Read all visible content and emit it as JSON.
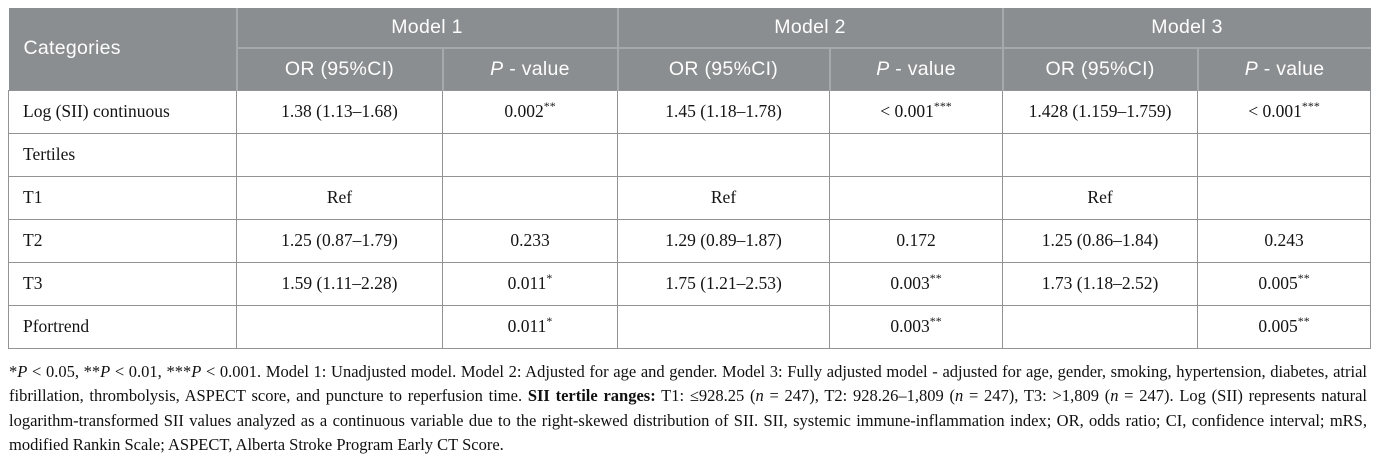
{
  "table": {
    "header": {
      "categories": "Categories",
      "models": [
        "Model 1",
        "Model 2",
        "Model 3"
      ],
      "or_label": "OR (95%CI)",
      "p_label_italic": "P",
      "p_label_rest": " - value"
    },
    "rows": [
      {
        "label": "Log (SII) continuous",
        "cells": [
          {
            "text": "1.38 (1.13–1.68)"
          },
          {
            "text": "0.002",
            "sup": "**"
          },
          {
            "text": "1.45 (1.18–1.78)"
          },
          {
            "text": "< 0.001",
            "sup": "***"
          },
          {
            "text": "1.428 (1.159–1.759)"
          },
          {
            "text": "< 0.001",
            "sup": "***"
          }
        ]
      },
      {
        "label": "Tertiles",
        "cells": [
          {
            "text": ""
          },
          {
            "text": ""
          },
          {
            "text": ""
          },
          {
            "text": ""
          },
          {
            "text": ""
          },
          {
            "text": ""
          }
        ]
      },
      {
        "label": "T1",
        "cells": [
          {
            "text": "Ref"
          },
          {
            "text": ""
          },
          {
            "text": "Ref"
          },
          {
            "text": ""
          },
          {
            "text": "Ref"
          },
          {
            "text": ""
          }
        ]
      },
      {
        "label": "T2",
        "cells": [
          {
            "text": "1.25 (0.87–1.79)"
          },
          {
            "text": "0.233"
          },
          {
            "text": "1.29 (0.89–1.87)"
          },
          {
            "text": "0.172"
          },
          {
            "text": "1.25 (0.86–1.84)"
          },
          {
            "text": "0.243"
          }
        ]
      },
      {
        "label": "T3",
        "cells": [
          {
            "text": "1.59 (1.11–2.28)"
          },
          {
            "text": "0.011",
            "sup": "*"
          },
          {
            "text": "1.75 (1.21–2.53)"
          },
          {
            "text": "0.003",
            "sup": "**"
          },
          {
            "text": "1.73 (1.18–2.52)"
          },
          {
            "text": "0.005",
            "sup": "**"
          }
        ]
      },
      {
        "label": "Pfortrend",
        "cells": [
          {
            "text": ""
          },
          {
            "text": "0.011",
            "sup": "*"
          },
          {
            "text": ""
          },
          {
            "text": "0.003",
            "sup": "**"
          },
          {
            "text": ""
          },
          {
            "text": "0.005",
            "sup": "**"
          }
        ]
      }
    ]
  },
  "footnote": {
    "segments": [
      {
        "t": "*"
      },
      {
        "t": "P",
        "i": true
      },
      {
        "t": " < 0.05, "
      },
      {
        "t": "**"
      },
      {
        "t": "P",
        "i": true
      },
      {
        "t": " < 0.01, "
      },
      {
        "t": "***"
      },
      {
        "t": "P",
        "i": true
      },
      {
        "t": " < 0.001. Model 1: Unadjusted model. Model 2: Adjusted for age and gender. Model 3: Fully adjusted model - adjusted for age, gender, smoking, hypertension, diabetes, atrial fibrillation, thrombolysis, ASPECT score, and puncture to reperfusion time. "
      },
      {
        "t": "SII tertile ranges:",
        "b": true
      },
      {
        "t": " T1: ≤928.25 ("
      },
      {
        "t": "n",
        "i": true
      },
      {
        "t": " = 247), T2: 928.26–1,809 ("
      },
      {
        "t": "n",
        "i": true
      },
      {
        "t": " = 247), T3: >1,809 ("
      },
      {
        "t": "n",
        "i": true
      },
      {
        "t": " = 247). Log (SII) represents natural logarithm-transformed SII values analyzed as a continuous variable due to the right-skewed distribution of SII. SII, systemic immune-inflammation index; OR, odds ratio; CI, confidence interval; mRS, modified Rankin Scale; ASPECT, Alberta Stroke Program Early CT Score."
      }
    ]
  },
  "colors": {
    "header_bg": "#8b8e90",
    "header_divider": "#a6a9ab",
    "header_text": "#fdfdfd",
    "body_border": "#919395",
    "body_text": "#141414"
  }
}
